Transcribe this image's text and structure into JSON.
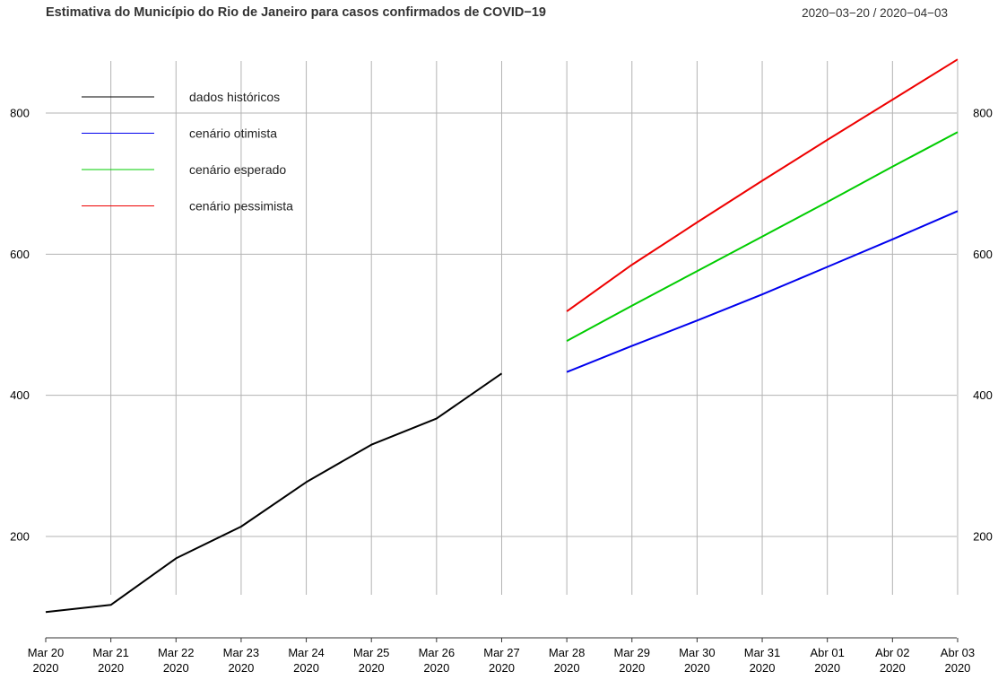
{
  "title": "Estimativa do Município do Rio de Janeiro para casos confirmados de COVID−19",
  "date_range": "2020−03−20 / 2020−04−03",
  "colors": {
    "historical": "#000000",
    "optimistic": "#0000ee",
    "expected": "#00cc00",
    "pessimistic": "#ee0000",
    "grid": "#b3b3b3"
  },
  "chart_data": {
    "type": "line",
    "title": "Estimativa do Município do Rio de Janeiro para casos confirmados de COVID−19",
    "subtitle": "2020−03−20 / 2020−04−03",
    "xlabel": "",
    "ylabel": "",
    "x_tick_labels": [
      [
        "Mar 20",
        "2020"
      ],
      [
        "Mar 21",
        "2020"
      ],
      [
        "Mar 22",
        "2020"
      ],
      [
        "Mar 23",
        "2020"
      ],
      [
        "Mar 24",
        "2020"
      ],
      [
        "Mar 25",
        "2020"
      ],
      [
        "Mar 26",
        "2020"
      ],
      [
        "Mar 27",
        "2020"
      ],
      [
        "Mar 28",
        "2020"
      ],
      [
        "Mar 29",
        "2020"
      ],
      [
        "Mar 30",
        "2020"
      ],
      [
        "Mar 31",
        "2020"
      ],
      [
        "Abr 01",
        "2020"
      ],
      [
        "Abr 02",
        "2020"
      ],
      [
        "Abr 03",
        "2020"
      ]
    ],
    "y_ticks": [
      200,
      400,
      600,
      800
    ],
    "y_ticks_right": [
      200,
      400,
      600,
      800
    ],
    "ylim": [
      80,
      880
    ],
    "grid": true,
    "legend_position": "top-left",
    "series": [
      {
        "name": "dados históricos",
        "color_key": "historical",
        "x": [
          "2020-03-20",
          "2020-03-21",
          "2020-03-22",
          "2020-03-23",
          "2020-03-24",
          "2020-03-25",
          "2020-03-26",
          "2020-03-27"
        ],
        "values": [
          93,
          103,
          169,
          214,
          277,
          330,
          367,
          431
        ]
      },
      {
        "name": "cenário otimista",
        "color_key": "optimistic",
        "x": [
          "2020-03-28",
          "2020-03-29",
          "2020-03-30",
          "2020-03-31",
          "2020-04-01",
          "2020-04-02",
          "2020-04-03"
        ],
        "values": [
          433,
          470,
          506,
          543,
          582,
          621,
          661
        ]
      },
      {
        "name": "cenário esperado",
        "color_key": "expected",
        "x": [
          "2020-03-28",
          "2020-03-29",
          "2020-03-30",
          "2020-03-31",
          "2020-04-01",
          "2020-04-02",
          "2020-04-03"
        ],
        "values": [
          477,
          527,
          576,
          625,
          674,
          724,
          773
        ]
      },
      {
        "name": "cenário pessimista",
        "color_key": "pessimistic",
        "x": [
          "2020-03-28",
          "2020-03-29",
          "2020-03-30",
          "2020-03-31",
          "2020-04-01",
          "2020-04-02",
          "2020-04-03"
        ],
        "values": [
          519,
          585,
          645,
          704,
          762,
          819,
          876
        ]
      }
    ]
  }
}
